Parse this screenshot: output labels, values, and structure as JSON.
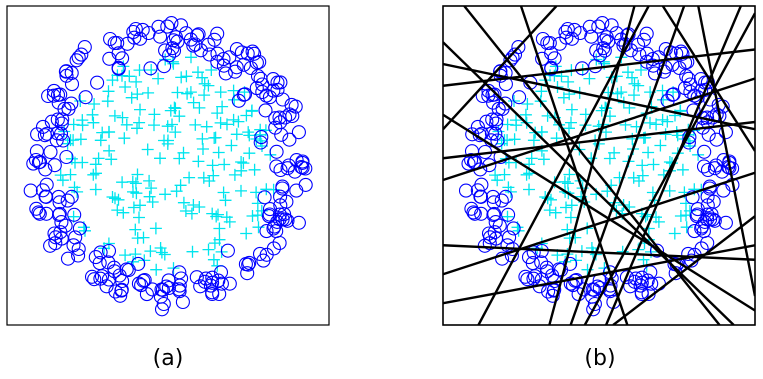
{
  "chart_data": [
    {
      "type": "scatter",
      "caption": "(a)",
      "title": "",
      "xlabel": "",
      "ylabel": "",
      "xlim": [
        -1.1,
        1.1
      ],
      "ylim": [
        -1.1,
        1.1
      ],
      "grid": false,
      "legend": "none",
      "series": [
        {
          "marker": "circle",
          "color": "#0000ff",
          "count": 260,
          "region": "ring",
          "r_range": [
            0.68,
            1.0
          ]
        },
        {
          "marker": "plus",
          "color": "#00e5ee",
          "count": 200,
          "region": "disk",
          "r_range": [
            0.0,
            0.78
          ]
        }
      ]
    },
    {
      "type": "scatter",
      "caption": "(b)",
      "title": "",
      "xlabel": "",
      "ylabel": "",
      "xlim": [
        -1.1,
        1.1
      ],
      "ylim": [
        -1.1,
        1.1
      ],
      "grid": false,
      "legend": "none",
      "series": [
        {
          "marker": "circle",
          "color": "#0000ff",
          "count": 260,
          "region": "ring",
          "r_range": [
            0.68,
            1.0
          ]
        },
        {
          "marker": "plus",
          "color": "#00e5ee",
          "count": 200,
          "region": "disk",
          "r_range": [
            0.0,
            0.78
          ]
        }
      ],
      "lines": [
        [
          [
            -0.55,
            1.1
          ],
          [
            0.2,
            -1.1
          ]
        ],
        [
          [
            -0.95,
            1.1
          ],
          [
            0.85,
            -1.1
          ]
        ],
        [
          [
            0.25,
            1.1
          ],
          [
            -0.35,
            -1.1
          ]
        ],
        [
          [
            0.6,
            1.1
          ],
          [
            -0.2,
            -1.1
          ]
        ],
        [
          [
            1.1,
            1.05
          ],
          [
            -0.1,
            -1.1
          ]
        ],
        [
          [
            0.45,
            1.1
          ],
          [
            1.1,
            0.1
          ]
        ],
        [
          [
            1.0,
            1.1
          ],
          [
            0.05,
            -1.1
          ]
        ],
        [
          [
            -1.1,
            0.7
          ],
          [
            1.1,
            0.25
          ]
        ],
        [
          [
            -1.1,
            0.55
          ],
          [
            1.1,
            0.8
          ]
        ],
        [
          [
            -1.1,
            0.05
          ],
          [
            1.1,
            0.3
          ]
        ],
        [
          [
            -1.1,
            -0.1
          ],
          [
            1.1,
            0.6
          ]
        ],
        [
          [
            -1.1,
            -0.75
          ],
          [
            1.1,
            -0.05
          ]
        ],
        [
          [
            -1.1,
            -0.95
          ],
          [
            1.1,
            -0.55
          ]
        ],
        [
          [
            -1.1,
            -0.55
          ],
          [
            1.1,
            -0.65
          ]
        ],
        [
          [
            -1.1,
            0.35
          ],
          [
            1.1,
            -1.0
          ]
        ],
        [
          [
            -1.1,
            0.85
          ],
          [
            0.95,
            -1.1
          ]
        ],
        [
          [
            0.7,
            1.1
          ],
          [
            1.1,
            -0.9
          ]
        ],
        [
          [
            -0.3,
            1.1
          ],
          [
            -1.1,
            0.25
          ]
        ],
        [
          [
            0.1,
            -1.1
          ],
          [
            1.1,
            -0.35
          ]
        ],
        [
          [
            -0.85,
            -1.1
          ],
          [
            0.35,
            1.1
          ]
        ]
      ]
    }
  ]
}
